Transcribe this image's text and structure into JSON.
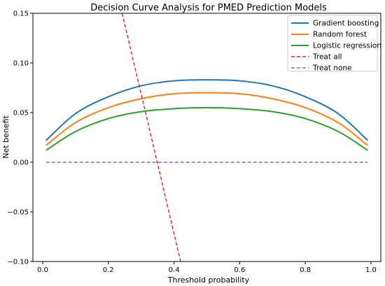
{
  "chart_data": {
    "type": "line",
    "title": "Decision Curve Analysis for PMED Prediction Models",
    "xlabel": "Threshold probability",
    "ylabel": "Net benefit",
    "xlim": [
      -0.03,
      1.03
    ],
    "ylim": [
      -0.1,
      0.15
    ],
    "xticks": [
      0.0,
      0.2,
      0.4,
      0.6,
      0.8,
      1.0
    ],
    "xtick_labels": [
      "0.0",
      "0.2",
      "0.4",
      "0.6",
      "0.8",
      "1.0"
    ],
    "yticks": [
      -0.1,
      -0.05,
      0.0,
      0.05,
      0.1,
      0.15
    ],
    "ytick_labels": [
      "−0.10",
      "−0.05",
      "0.00",
      "0.05",
      "0.10",
      "0.15"
    ],
    "grid": false,
    "legend_position": "top-right",
    "series": [
      {
        "name": "Gradient boosting",
        "color": "#1f77b4",
        "style": "solid",
        "x": [
          0.01,
          0.1,
          0.2,
          0.3,
          0.4,
          0.5,
          0.6,
          0.7,
          0.8,
          0.9,
          0.99
        ],
        "y": [
          0.022,
          0.049,
          0.066,
          0.077,
          0.082,
          0.083,
          0.082,
          0.077,
          0.066,
          0.049,
          0.022
        ]
      },
      {
        "name": "Random forest",
        "color": "#ff7f0e",
        "style": "solid",
        "x": [
          0.01,
          0.1,
          0.2,
          0.3,
          0.4,
          0.5,
          0.6,
          0.7,
          0.8,
          0.9,
          0.99
        ],
        "y": [
          0.017,
          0.04,
          0.055,
          0.064,
          0.069,
          0.07,
          0.069,
          0.064,
          0.055,
          0.04,
          0.017
        ]
      },
      {
        "name": "Logistic regression",
        "color": "#2ca02c",
        "style": "solid",
        "x": [
          0.01,
          0.1,
          0.2,
          0.3,
          0.4,
          0.5,
          0.6,
          0.7,
          0.8,
          0.9,
          0.99
        ],
        "y": [
          0.012,
          0.031,
          0.044,
          0.051,
          0.054,
          0.055,
          0.054,
          0.051,
          0.044,
          0.031,
          0.012
        ]
      },
      {
        "name": "Treat all",
        "color": "#d62728",
        "style": "dashed",
        "x": [
          0.242,
          0.42
        ],
        "y": [
          0.15,
          -0.1
        ]
      },
      {
        "name": "Treat none",
        "color": "#9467bd",
        "style": "dashed",
        "x": [
          0.01,
          0.99
        ],
        "y": [
          0.0,
          0.0
        ]
      }
    ]
  }
}
